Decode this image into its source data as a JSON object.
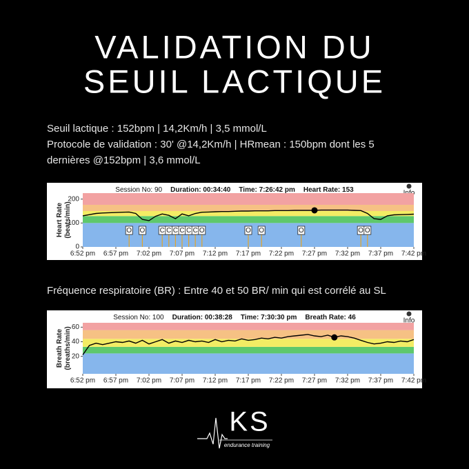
{
  "header": {
    "title": [
      "VALIDATION DU",
      "SEUIL LACTIQUE"
    ]
  },
  "text": {
    "lines": [
      "Seuil lactique : 152bpm |  14,2Km/h | 3,5 mmol/L",
      "Protocole de validation : 30' @14,2Km/h | HRmean : 150bpm dont les 5",
      "dernières @152bpm | 3,6 mmol/L"
    ],
    "br_note": "Fréquence respiratoire (BR) : Entre 40 et 50 BR/ min qui est corrélé au SL"
  },
  "chart_data": [
    {
      "type": "line",
      "header": [
        "Session No: 90",
        "Duration: 00:34:40",
        "Time: 7:26:42 pm",
        "Heart Rate: 153"
      ],
      "info": "Info",
      "ylabel": [
        "Heart Rate",
        "(beats/min)"
      ],
      "x": [
        "6:52 pm",
        "6:53 pm",
        "6:54 pm",
        "6:55 pm",
        "6:56 pm",
        "6:57 pm",
        "6:58 pm",
        "6:59 pm",
        "7:00 pm",
        "7:01 pm",
        "7:02 pm",
        "7:03 pm",
        "7:04 pm",
        "7:05 pm",
        "7:06 pm",
        "7:07 pm",
        "7:08 pm",
        "7:09 pm",
        "7:10 pm",
        "7:11 pm",
        "7:12 pm",
        "7:13 pm",
        "7:14 pm",
        "7:15 pm",
        "7:16 pm",
        "7:17 pm",
        "7:18 pm",
        "7:19 pm",
        "7:20 pm",
        "7:21 pm",
        "7:22 pm",
        "7:23 pm",
        "7:24 pm",
        "7:25 pm",
        "7:26 pm",
        "7:27 pm",
        "7:28 pm",
        "7:29 pm",
        "7:30 pm",
        "7:31 pm",
        "7:32 pm",
        "7:33 pm",
        "7:34 pm",
        "7:35 pm",
        "7:36 pm",
        "7:37 pm",
        "7:38 pm",
        "7:39 pm",
        "7:40 pm",
        "7:41 pm",
        "7:42 pm"
      ],
      "series": [
        {
          "color": "#000000",
          "values": [
            130,
            135,
            140,
            142,
            143,
            144,
            145,
            146,
            140,
            115,
            110,
            128,
            138,
            132,
            118,
            138,
            130,
            140,
            145,
            146,
            147,
            148,
            148,
            149,
            150,
            150,
            151,
            151,
            151,
            152,
            152,
            152,
            153,
            153,
            153,
            153,
            154,
            154,
            154,
            154,
            154,
            153,
            152,
            140,
            118,
            115,
            130,
            134,
            135,
            136,
            137
          ]
        }
      ],
      "xlim": [
        "6:52 pm",
        "7:42 pm"
      ],
      "xticks": [
        "6:52 pm",
        "6:57 pm",
        "7:02 pm",
        "7:07 pm",
        "7:12 pm",
        "7:17 pm",
        "7:22 pm",
        "7:27 pm",
        "7:32 pm",
        "7:37 pm",
        "7:42 pm"
      ],
      "ylim": [
        0,
        225
      ],
      "yticks": [
        0,
        100,
        200
      ],
      "zones": [
        {
          "from": 0,
          "to": 100,
          "color": "#86b6ec"
        },
        {
          "from": 100,
          "to": 129,
          "color": "#5ec86c"
        },
        {
          "from": 129,
          "to": 150,
          "color": "#f3ec64"
        },
        {
          "from": 150,
          "to": 176,
          "color": "#f6c184"
        },
        {
          "from": 176,
          "to": 225,
          "color": "#f2a2a2"
        }
      ],
      "marker": {
        "x": "7:27 pm",
        "y": 153
      },
      "events": [
        {
          "label": "O",
          "x": "6:59 pm"
        },
        {
          "label": "O",
          "x": "7:01 pm"
        },
        {
          "label": "C",
          "x": "7:04 pm"
        },
        {
          "label": "C",
          "x": "7:05 pm"
        },
        {
          "label": "C",
          "x": "7:06 pm"
        },
        {
          "label": "C",
          "x": "7:07 pm"
        },
        {
          "label": "C",
          "x": "7:08 pm"
        },
        {
          "label": "C",
          "x": "7:09 pm"
        },
        {
          "label": "O",
          "x": "7:10 pm"
        },
        {
          "label": "O",
          "x": "7:17 pm"
        },
        {
          "label": "O",
          "x": "7:19 pm"
        },
        {
          "label": "O",
          "x": "7:25 pm"
        },
        {
          "label": "O",
          "x": "7:34 pm"
        },
        {
          "label": "O",
          "x": "7:35 pm"
        }
      ]
    },
    {
      "type": "line",
      "header": [
        "Session No: 100",
        "Duration: 00:38:28",
        "Time: 7:30:30 pm",
        "Breath Rate: 46"
      ],
      "info": "Info",
      "ylabel": [
        "Breath Rate",
        "(breaths/min)"
      ],
      "x": [
        "6:52 pm",
        "6:53 pm",
        "6:54 pm",
        "6:55 pm",
        "6:56 pm",
        "6:57 pm",
        "6:58 pm",
        "6:59 pm",
        "7:00 pm",
        "7:01 pm",
        "7:02 pm",
        "7:03 pm",
        "7:04 pm",
        "7:05 pm",
        "7:06 pm",
        "7:07 pm",
        "7:08 pm",
        "7:09 pm",
        "7:10 pm",
        "7:11 pm",
        "7:12 pm",
        "7:13 pm",
        "7:14 pm",
        "7:15 pm",
        "7:16 pm",
        "7:17 pm",
        "7:18 pm",
        "7:19 pm",
        "7:20 pm",
        "7:21 pm",
        "7:22 pm",
        "7:23 pm",
        "7:24 pm",
        "7:25 pm",
        "7:26 pm",
        "7:27 pm",
        "7:28 pm",
        "7:29 pm",
        "7:30 pm",
        "7:31 pm",
        "7:32 pm",
        "7:33 pm",
        "7:34 pm",
        "7:35 pm",
        "7:36 pm",
        "7:37 pm",
        "7:38 pm",
        "7:39 pm",
        "7:40 pm",
        "7:41 pm",
        "7:42 pm"
      ],
      "series": [
        {
          "color": "#000000",
          "values": [
            22,
            35,
            38,
            36,
            38,
            40,
            39,
            41,
            38,
            42,
            37,
            40,
            43,
            38,
            41,
            39,
            42,
            40,
            41,
            39,
            43,
            40,
            42,
            41,
            44,
            42,
            43,
            45,
            44,
            46,
            45,
            47,
            48,
            49,
            50,
            48,
            47,
            49,
            46,
            48,
            47,
            45,
            42,
            39,
            37,
            38,
            40,
            39,
            41,
            40,
            43
          ]
        }
      ],
      "xlim": [
        "6:52 pm",
        "7:42 pm"
      ],
      "xticks": [
        "6:52 pm",
        "6:57 pm",
        "7:02 pm",
        "7:07 pm",
        "7:12 pm",
        "7:17 pm",
        "7:22 pm",
        "7:27 pm",
        "7:32 pm",
        "7:37 pm",
        "7:42 pm"
      ],
      "ylim": [
        -4,
        66
      ],
      "yticks": [
        20,
        40,
        60
      ],
      "zones": [
        {
          "from": -4,
          "to": 24,
          "color": "#86b6ec"
        },
        {
          "from": 24,
          "to": 33,
          "color": "#5ec86c"
        },
        {
          "from": 33,
          "to": 44,
          "color": "#f3ec64"
        },
        {
          "from": 44,
          "to": 56,
          "color": "#f6c184"
        },
        {
          "from": 56,
          "to": 66,
          "color": "#f2a2a2"
        }
      ],
      "marker": {
        "x": "7:30 pm",
        "y": 46
      }
    }
  ],
  "logo": {
    "mark": "KS",
    "tagline": "endurance training"
  }
}
